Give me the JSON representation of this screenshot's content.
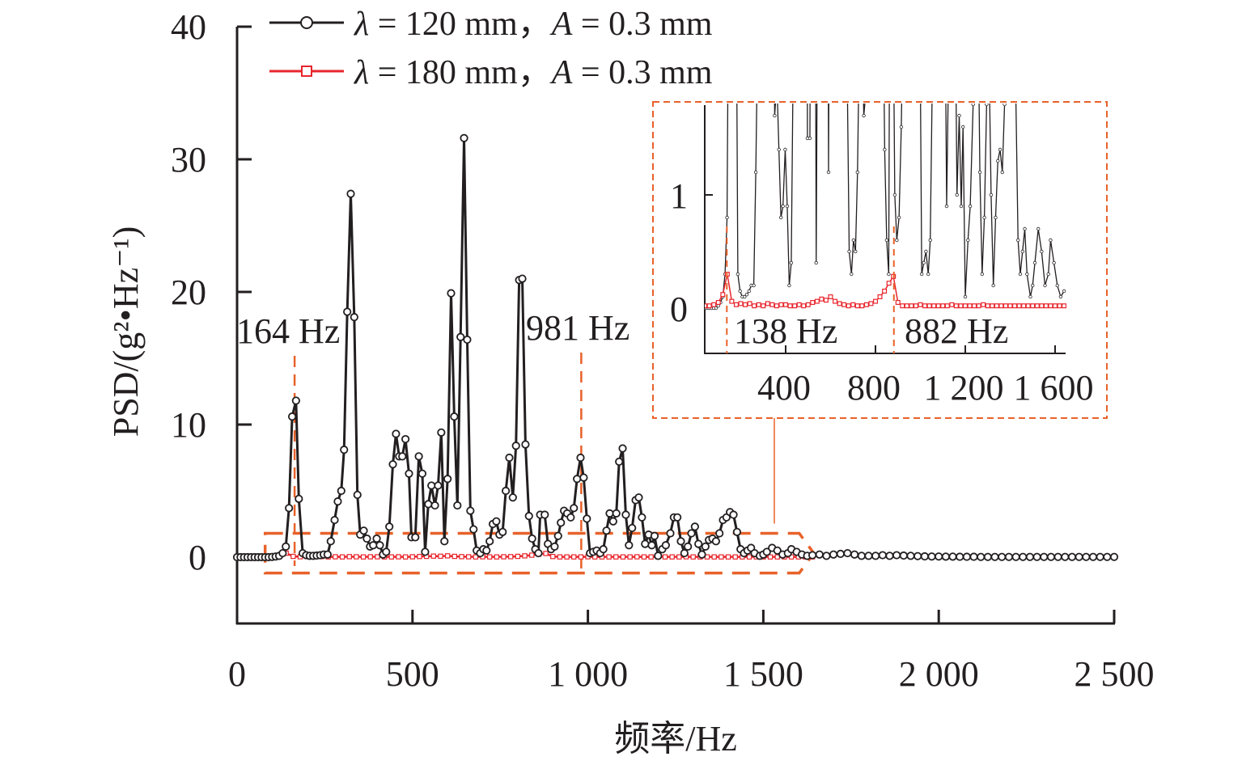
{
  "chart_data": {
    "type": "line",
    "xlabel": "频率/Hz",
    "ylabel": "PSD/(g²•Hz⁻¹)",
    "xlim": [
      0,
      2500
    ],
    "ylim": [
      -5,
      40
    ],
    "xticks": [
      0,
      500,
      1000,
      1500,
      2000,
      2500
    ],
    "xtick_labels": [
      "0",
      "500",
      "1 000",
      "1 500",
      "2 000",
      "2 500"
    ],
    "yticks": [
      0,
      10,
      20,
      30,
      40
    ],
    "ytick_labels": [
      "0",
      "10",
      "20",
      "30",
      "40"
    ],
    "grid": false,
    "legend_position": "top-left",
    "colors": {
      "black": "#231f20",
      "red": "#e8262d",
      "orange": "#e8622a"
    },
    "series": [
      {
        "name": "λ = 120 mm，A = 0.3 mm",
        "legend_lambda": "λ",
        "legend_mid": " = 120 mm，",
        "legend_A": "A",
        "legend_end": " = 0.3 mm",
        "marker": "circle",
        "points": [
          [
            0,
            0
          ],
          [
            10,
            0
          ],
          [
            20,
            0
          ],
          [
            30,
            0
          ],
          [
            40,
            0
          ],
          [
            50,
            0
          ],
          [
            60,
            0
          ],
          [
            70,
            0
          ],
          [
            80,
            0
          ],
          [
            90,
            0
          ],
          [
            100,
            0.02
          ],
          [
            110,
            0.05
          ],
          [
            120,
            0.1
          ],
          [
            130,
            0.3
          ],
          [
            139,
            0.8
          ],
          [
            148,
            3.7
          ],
          [
            157,
            10.6
          ],
          [
            168,
            11.8
          ],
          [
            176,
            4.4
          ],
          [
            187,
            0.3
          ],
          [
            197,
            0.15
          ],
          [
            207,
            0.1
          ],
          [
            217,
            0.1
          ],
          [
            227,
            0.12
          ],
          [
            237,
            0.15
          ],
          [
            247,
            0.2
          ],
          [
            258,
            0.2
          ],
          [
            267,
            1.2
          ],
          [
            278,
            2.8
          ],
          [
            287,
            4.2
          ],
          [
            297,
            5.0
          ],
          [
            305,
            8.1
          ],
          [
            314,
            18.5
          ],
          [
            324,
            27.4
          ],
          [
            334,
            18.1
          ],
          [
            343,
            4.7
          ],
          [
            351,
            1.7
          ],
          [
            361,
            2.0
          ],
          [
            370,
            1.4
          ],
          [
            379,
            0.8
          ],
          [
            388,
            0.9
          ],
          [
            398,
            1.4
          ],
          [
            407,
            0.9
          ],
          [
            416,
            0.2
          ],
          [
            425,
            0.4
          ],
          [
            434,
            2.3
          ],
          [
            444,
            7.0
          ],
          [
            453,
            9.3
          ],
          [
            462,
            7.6
          ],
          [
            471,
            7.6
          ],
          [
            480,
            8.9
          ],
          [
            490,
            6.3
          ],
          [
            497,
            1.5
          ],
          [
            508,
            1.5
          ],
          [
            518,
            7.6
          ],
          [
            528,
            6.3
          ],
          [
            536,
            0.4
          ],
          [
            545,
            4.0
          ],
          [
            554,
            5.4
          ],
          [
            564,
            3.9
          ],
          [
            573,
            5.4
          ],
          [
            582,
            9.4
          ],
          [
            591,
            1.2
          ],
          [
            600,
            5.9
          ],
          [
            610,
            19.9
          ],
          [
            619,
            10.6
          ],
          [
            628,
            3.9
          ],
          [
            637,
            16.6
          ],
          [
            647,
            31.6
          ],
          [
            656,
            16.4
          ],
          [
            665,
            3.5
          ],
          [
            674,
            2.1
          ],
          [
            683,
            0.5
          ],
          [
            693,
            0.3
          ],
          [
            702,
            0.6
          ],
          [
            711,
            0.5
          ],
          [
            720,
            1.2
          ],
          [
            729,
            2.5
          ],
          [
            739,
            2.7
          ],
          [
            748,
            1.7
          ],
          [
            757,
            1.9
          ],
          [
            766,
            5.0
          ],
          [
            776,
            7.5
          ],
          [
            786,
            4.5
          ],
          [
            795,
            8.4
          ],
          [
            804,
            20.9
          ],
          [
            813,
            21.0
          ],
          [
            822,
            8.5
          ],
          [
            832,
            3.1
          ],
          [
            841,
            1.4
          ],
          [
            850,
            0.6
          ],
          [
            859,
            0.3
          ],
          [
            864,
            3.2
          ],
          [
            877,
            3.2
          ],
          [
            886,
            1.0
          ],
          [
            895,
            0.6
          ],
          [
            905,
            0.8
          ],
          [
            915,
            1.6
          ],
          [
            923,
            2.6
          ],
          [
            932,
            3.5
          ],
          [
            941,
            3.3
          ],
          [
            951,
            3.0
          ],
          [
            960,
            3.7
          ],
          [
            969,
            5.9
          ],
          [
            979,
            7.5
          ],
          [
            988,
            6.0
          ],
          [
            997,
            2.9
          ],
          [
            1006,
            0.3
          ],
          [
            1015,
            0.4
          ],
          [
            1025,
            0.5
          ],
          [
            1035,
            0.3
          ],
          [
            1044,
            0.6
          ],
          [
            1053,
            2.0
          ],
          [
            1062,
            3.3
          ],
          [
            1072,
            2.7
          ],
          [
            1081,
            3.3
          ],
          [
            1089,
            7.2
          ],
          [
            1099,
            8.2
          ],
          [
            1108,
            3.2
          ],
          [
            1117,
            0.9
          ],
          [
            1126,
            2.2
          ],
          [
            1136,
            4.3
          ],
          [
            1145,
            4.5
          ],
          [
            1154,
            3.0
          ],
          [
            1163,
            1.0
          ],
          [
            1173,
            1.7
          ],
          [
            1182,
            0.9
          ],
          [
            1190,
            1.6
          ],
          [
            1200,
            0.1
          ],
          [
            1212,
            0.6
          ],
          [
            1222,
            0.9
          ],
          [
            1235,
            1.8
          ],
          [
            1245,
            3.0
          ],
          [
            1255,
            3.0
          ],
          [
            1265,
            1.2
          ],
          [
            1275,
            0.3
          ],
          [
            1285,
            0.8
          ],
          [
            1295,
            1.8
          ],
          [
            1305,
            2.3
          ],
          [
            1315,
            1.0
          ],
          [
            1325,
            0.2
          ],
          [
            1335,
            0.8
          ],
          [
            1345,
            1.3
          ],
          [
            1355,
            1.4
          ],
          [
            1365,
            1.2
          ],
          [
            1375,
            1.8
          ],
          [
            1385,
            2.8
          ],
          [
            1395,
            3.0
          ],
          [
            1405,
            3.4
          ],
          [
            1415,
            3.2
          ],
          [
            1425,
            1.9
          ],
          [
            1435,
            0.6
          ],
          [
            1445,
            0.3
          ],
          [
            1455,
            0.5
          ],
          [
            1465,
            0.7
          ],
          [
            1475,
            0.3
          ],
          [
            1490,
            0.1
          ],
          [
            1500,
            0.2
          ],
          [
            1510,
            0.4
          ],
          [
            1525,
            0.7
          ],
          [
            1540,
            0.5
          ],
          [
            1555,
            0.2
          ],
          [
            1570,
            0.3
          ],
          [
            1580,
            0.6
          ],
          [
            1595,
            0.4
          ],
          [
            1610,
            0.2
          ],
          [
            1625,
            0.1
          ],
          [
            1640,
            0.15
          ],
          [
            1660,
            0.2
          ],
          [
            1680,
            0.1
          ],
          [
            1700,
            0.2
          ],
          [
            1720,
            0.25
          ],
          [
            1740,
            0.3
          ],
          [
            1760,
            0.2
          ],
          [
            1780,
            0.1
          ],
          [
            1800,
            0.1
          ],
          [
            1820,
            0.1
          ],
          [
            1840,
            0.15
          ],
          [
            1860,
            0.1
          ],
          [
            1880,
            0.15
          ],
          [
            1900,
            0.12
          ],
          [
            1920,
            0.1
          ],
          [
            1940,
            0.08
          ],
          [
            1960,
            0.06
          ],
          [
            1980,
            0.05
          ],
          [
            2000,
            0.05
          ],
          [
            2020,
            0.04
          ],
          [
            2040,
            0.04
          ],
          [
            2060,
            0.03
          ],
          [
            2080,
            0.03
          ],
          [
            2100,
            0.03
          ],
          [
            2120,
            0.02
          ],
          [
            2140,
            0.02
          ],
          [
            2160,
            0.02
          ],
          [
            2180,
            0.02
          ],
          [
            2200,
            0.02
          ],
          [
            2220,
            0.02
          ],
          [
            2240,
            0.02
          ],
          [
            2260,
            0.02
          ],
          [
            2280,
            0.02
          ],
          [
            2300,
            0.02
          ],
          [
            2320,
            0.02
          ],
          [
            2340,
            0.02
          ],
          [
            2360,
            0.02
          ],
          [
            2380,
            0.02
          ],
          [
            2400,
            0.02
          ],
          [
            2420,
            0.02
          ],
          [
            2440,
            0.02
          ],
          [
            2460,
            0.02
          ],
          [
            2480,
            0.02
          ],
          [
            2500,
            0.02
          ]
        ]
      },
      {
        "name": "λ = 180 mm，A = 0.3 mm",
        "legend_lambda": "λ",
        "legend_mid": " = 180 mm，",
        "legend_A": "A",
        "legend_end": " = 0.3 mm",
        "marker": "square",
        "x_start": 40,
        "x_step": 20,
        "values": [
          0.02,
          0.02,
          0.03,
          0.05,
          0.12,
          0.3,
          0.06,
          0.03,
          0.04,
          0.03,
          0.04,
          0.02,
          0.03,
          0.02,
          0.04,
          0.03,
          0.02,
          0.03,
          0.03,
          0.02,
          0.02,
          0.03,
          0.02,
          0.03,
          0.05,
          0.06,
          0.08,
          0.07,
          0.1,
          0.06,
          0.04,
          0.03,
          0.02,
          0.03,
          0.02,
          0.02,
          0.03,
          0.04,
          0.06,
          0.1,
          0.15,
          0.22,
          0.28,
          0.05,
          0.02,
          0.02,
          0.02,
          0.02,
          0.03,
          0.02,
          0.02,
          0.02,
          0.02,
          0.02,
          0.02,
          0.03,
          0.02,
          0.02,
          0.02,
          0.02,
          0.02,
          0.02,
          0.03,
          0.02,
          0.02,
          0.02,
          0.02,
          0.02,
          0.02,
          0.02,
          0.02,
          0.02,
          0.02,
          0.02,
          0.02,
          0.02,
          0.02,
          0.02,
          0.02,
          0.02,
          0.02
        ]
      }
    ],
    "annotations": {
      "main_peak_1": "164 Hz",
      "main_peak_1_x": 164,
      "main_peak_2": "981 Hz",
      "main_peak_2_x": 981,
      "zoom_region_x": [
        80,
        1630
      ],
      "zoom_region_y": [
        -1.2,
        1.8
      ]
    },
    "inset": {
      "xlim": [
        40,
        1640
      ],
      "ylim": [
        -0.4,
        1.78
      ],
      "xticks": [
        400,
        800,
        1200,
        1600
      ],
      "xtick_labels": [
        "400",
        "800",
        "1 200",
        "1 600"
      ],
      "yticks": [
        0,
        1
      ],
      "ytick_labels": [
        "0",
        "1"
      ],
      "peak_1": "138 Hz",
      "peak_1_x": 138,
      "peak_2": "882 Hz",
      "peak_2_x": 882
    }
  }
}
